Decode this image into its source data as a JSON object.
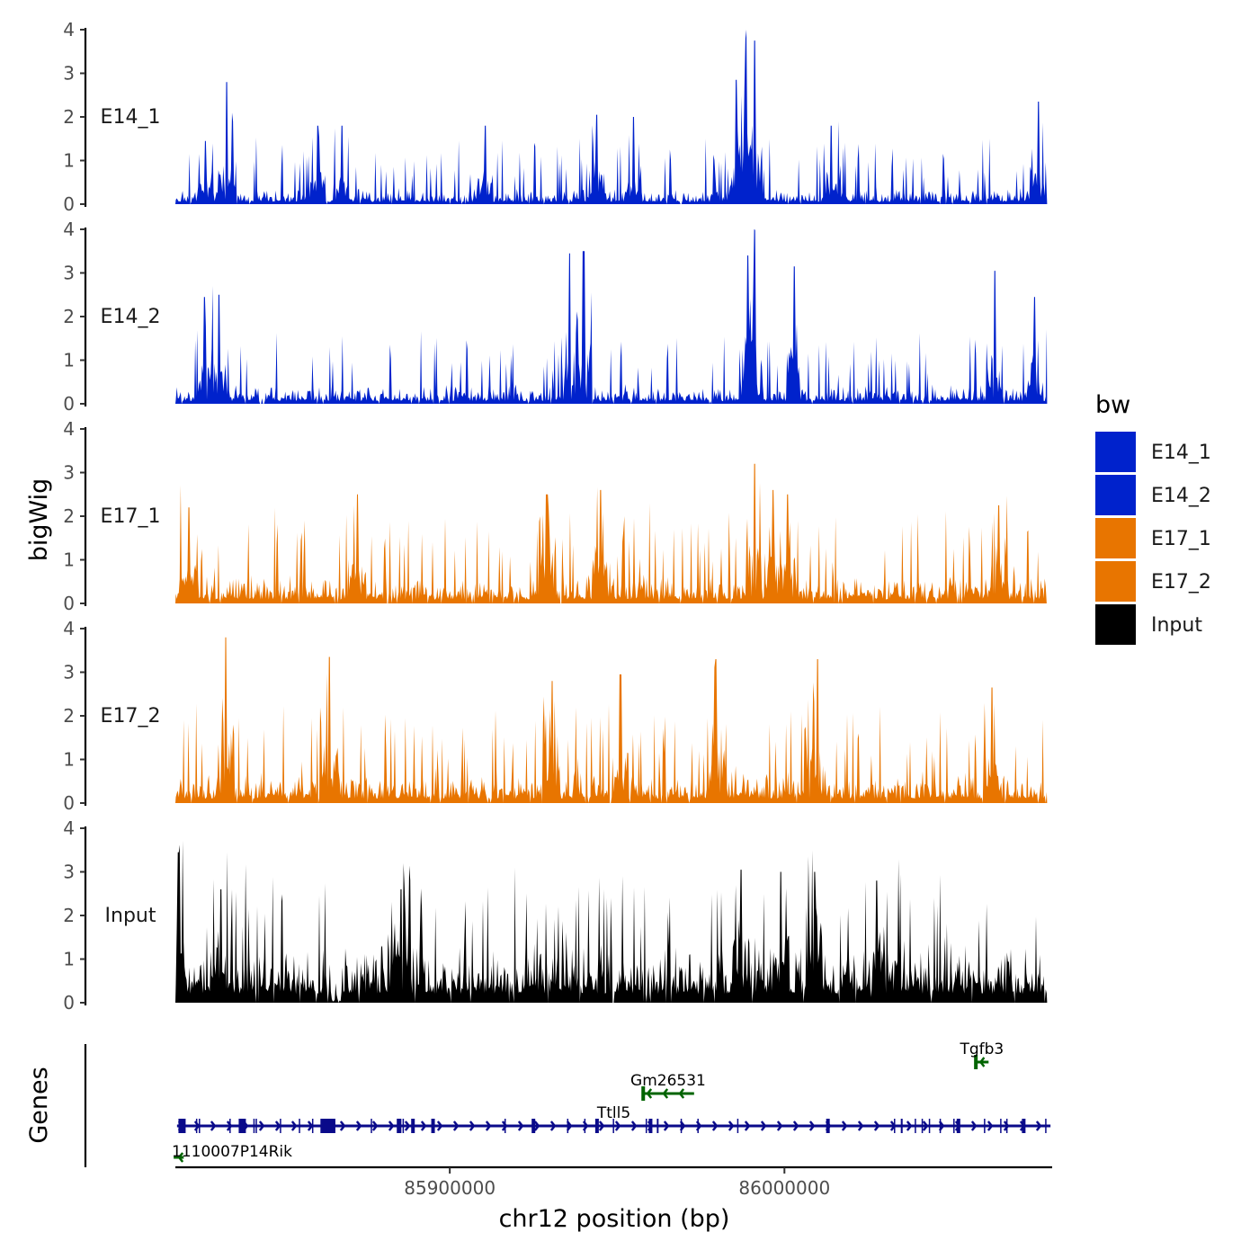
{
  "chart_data": {
    "type": "area",
    "ylabel": "bigWig",
    "xlabel": "chr12 position (bp)",
    "chromosome": "chr12",
    "xlim": [
      85818000,
      86080000
    ],
    "ylim": [
      0,
      4
    ],
    "yticks": [
      0,
      1,
      2,
      3,
      4
    ],
    "xticks": [
      {
        "value": 85900000,
        "label": "85900000"
      },
      {
        "value": 86000000,
        "label": "86000000"
      }
    ],
    "series": [
      {
        "name": "E14_1",
        "label": "E14_1",
        "color": "#0022CC",
        "base": 0.25,
        "spread": 0.55,
        "peaks": [
          {
            "x": 85833300,
            "y": 2.8
          },
          {
            "x": 85827000,
            "y": 1.45
          },
          {
            "x": 85860500,
            "y": 1.8
          },
          {
            "x": 85867800,
            "y": 1.8
          },
          {
            "x": 85910500,
            "y": 1.8
          },
          {
            "x": 85944000,
            "y": 2.05
          },
          {
            "x": 85955000,
            "y": 2.0
          },
          {
            "x": 85988500,
            "y": 3.8
          },
          {
            "x": 85991000,
            "y": 3.75
          },
          {
            "x": 85985500,
            "y": 2.85
          },
          {
            "x": 86014000,
            "y": 1.8
          },
          {
            "x": 86075800,
            "y": 2.35
          }
        ]
      },
      {
        "name": "E14_2",
        "label": "E14_2",
        "color": "#0022CC",
        "base": 0.3,
        "spread": 0.6,
        "peaks": [
          {
            "x": 85826800,
            "y": 2.45
          },
          {
            "x": 85831000,
            "y": 2.5
          },
          {
            "x": 85935800,
            "y": 3.45
          },
          {
            "x": 85940000,
            "y": 3.5
          },
          {
            "x": 85991200,
            "y": 3.85
          },
          {
            "x": 85989000,
            "y": 3.4
          },
          {
            "x": 86003000,
            "y": 3.15
          },
          {
            "x": 86062800,
            "y": 3.05
          },
          {
            "x": 86074800,
            "y": 2.45
          }
        ]
      },
      {
        "name": "E17_1",
        "label": "E17_1",
        "color": "#E87500",
        "base": 0.45,
        "spread": 0.7,
        "peaks": [
          {
            "x": 85822000,
            "y": 2.2
          },
          {
            "x": 85872500,
            "y": 2.5
          },
          {
            "x": 85929000,
            "y": 2.5
          },
          {
            "x": 85945000,
            "y": 2.6
          },
          {
            "x": 85991000,
            "y": 3.2
          },
          {
            "x": 85996500,
            "y": 2.6
          },
          {
            "x": 86001000,
            "y": 2.5
          },
          {
            "x": 86064000,
            "y": 2.25
          }
        ]
      },
      {
        "name": "E17_2",
        "label": "E17_2",
        "color": "#E87500",
        "base": 0.5,
        "spread": 0.75,
        "peaks": [
          {
            "x": 85833000,
            "y": 3.8
          },
          {
            "x": 85864000,
            "y": 3.35
          },
          {
            "x": 85930500,
            "y": 2.8
          },
          {
            "x": 85951000,
            "y": 2.95
          },
          {
            "x": 85979500,
            "y": 3.3
          },
          {
            "x": 86010000,
            "y": 3.3
          },
          {
            "x": 86062000,
            "y": 2.65
          }
        ]
      },
      {
        "name": "Input",
        "label": "Input",
        "color": "#000000",
        "base": 1.0,
        "spread": 0.9,
        "dipAt": 85866000,
        "peaks": [
          {
            "x": 85818800,
            "y": 3.45
          },
          {
            "x": 85831500,
            "y": 2.6
          },
          {
            "x": 85885500,
            "y": 2.6
          },
          {
            "x": 85987000,
            "y": 3.05
          },
          {
            "x": 85999000,
            "y": 3.0
          },
          {
            "x": 86009000,
            "y": 3.0
          },
          {
            "x": 86027500,
            "y": 2.8
          }
        ]
      }
    ],
    "legend": {
      "title": "bw",
      "position": "right"
    },
    "genes_track": {
      "label": "Genes",
      "genes": [
        {
          "name": "Ttll5",
          "start": 85818500,
          "end": 86079500,
          "strand": "+",
          "color": "#0A0A8A",
          "row": 1,
          "exons": [
            85820000,
            85838000,
            85862500,
            85863500,
            85885000,
            85889000,
            85895000,
            85925000,
            85944000,
            85960000,
            86013000,
            86052000,
            86071500
          ]
        },
        {
          "name": "Gm26531",
          "start": 85957500,
          "end": 85973000,
          "strand": "-",
          "color": "#006400",
          "row": 2,
          "exons": [
            85957800
          ]
        },
        {
          "name": "Tgfb3",
          "start": 86057000,
          "end": 86061000,
          "strand": "-",
          "color": "#006400",
          "row": 3,
          "exons": [
            86057200
          ]
        },
        {
          "name": "1110007P14Rik",
          "start": 85817500,
          "end": 85820500,
          "strand": "-",
          "color": "#006400",
          "row": 0,
          "exons": []
        }
      ]
    }
  }
}
